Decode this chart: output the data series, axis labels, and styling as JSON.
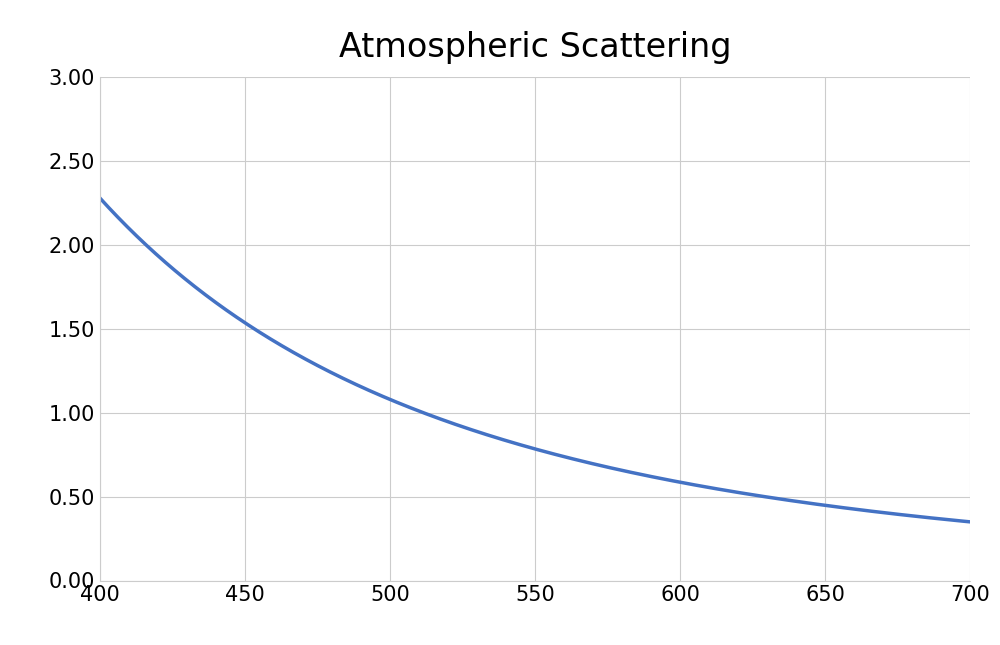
{
  "title": "Atmospheric Scattering",
  "title_fontsize": 24,
  "xlim": [
    400,
    700
  ],
  "ylim": [
    0.0,
    3.0
  ],
  "xticks": [
    400,
    450,
    500,
    550,
    600,
    650,
    700
  ],
  "yticks": [
    0.0,
    0.5,
    1.0,
    1.5,
    2.0,
    2.5,
    3.0
  ],
  "line_color": "#4472C4",
  "line_width": 2.5,
  "background_color": "#ffffff",
  "grid_color": "#cccccc",
  "tick_fontsize": 15,
  "reference_wavelength": 400,
  "reference_value": 2.28,
  "x_start": 400,
  "x_end": 700,
  "scattering_power": 3.35
}
